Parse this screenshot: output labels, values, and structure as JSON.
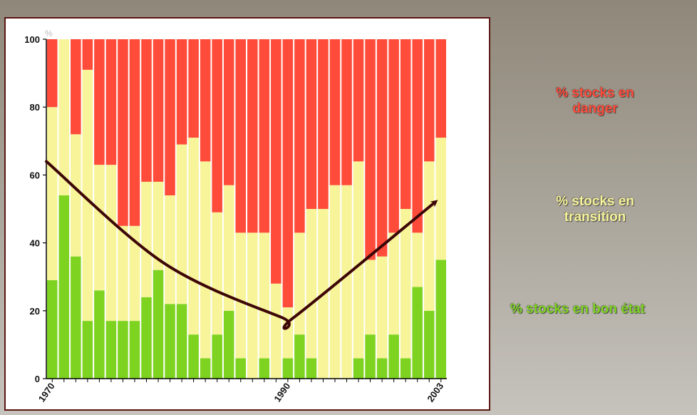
{
  "chart_data": {
    "type": "bar",
    "stacked": true,
    "percent": true,
    "unit": "%",
    "x_tick_labels": [
      "1970",
      "1990",
      "2003"
    ],
    "ylim": [
      0,
      100
    ],
    "yticks": [
      0,
      20,
      40,
      60,
      80,
      100
    ],
    "categories": [
      "1970",
      "1971",
      "1972",
      "1973",
      "1974",
      "1975",
      "1976",
      "1977",
      "1978",
      "1979",
      "1980",
      "1981",
      "1982",
      "1983",
      "1984",
      "1985",
      "1986",
      "1987",
      "1988",
      "1989",
      "1990",
      "1991",
      "1992",
      "1993",
      "1994",
      "1995",
      "1996",
      "1997",
      "1998",
      "1999",
      "2000",
      "2001",
      "2002",
      "2003"
    ],
    "series": [
      {
        "name": "% stocks en bon état",
        "color": "#7ed321",
        "values": [
          29,
          54,
          36,
          17,
          26,
          17,
          17,
          17,
          24,
          32,
          22,
          22,
          13,
          6,
          13,
          20,
          6,
          0,
          6,
          0,
          6,
          13,
          6,
          0,
          0,
          0,
          6,
          13,
          6,
          13,
          6,
          27,
          20,
          35
        ]
      },
      {
        "name": "% stocks en transition",
        "color": "#f7f49a",
        "values": [
          51,
          46,
          36,
          74,
          37,
          46,
          28,
          28,
          34,
          26,
          32,
          47,
          58,
          58,
          36,
          37,
          37,
          43,
          37,
          28,
          15,
          30,
          44,
          50,
          57,
          57,
          58,
          22,
          30,
          30,
          44,
          16,
          44,
          36
        ]
      },
      {
        "name": "% stocks en danger",
        "color": "#ff4b3a",
        "values": [
          20,
          0,
          28,
          9,
          37,
          37,
          55,
          55,
          42,
          42,
          46,
          31,
          29,
          36,
          51,
          43,
          57,
          57,
          57,
          72,
          79,
          57,
          50,
          50,
          43,
          43,
          36,
          65,
          64,
          57,
          50,
          57,
          36,
          29
        ]
      }
    ],
    "trend_line": {
      "color": "#3d0606",
      "x": [
        1970,
        1980,
        1990,
        1991,
        2003
      ],
      "y": [
        64,
        34,
        18,
        18,
        52
      ]
    },
    "legend_placement": "right"
  },
  "legend": {
    "danger": "% stocks en\ndanger",
    "transition": "% stocks en\ntransition",
    "good": "% stocks en bon état"
  }
}
